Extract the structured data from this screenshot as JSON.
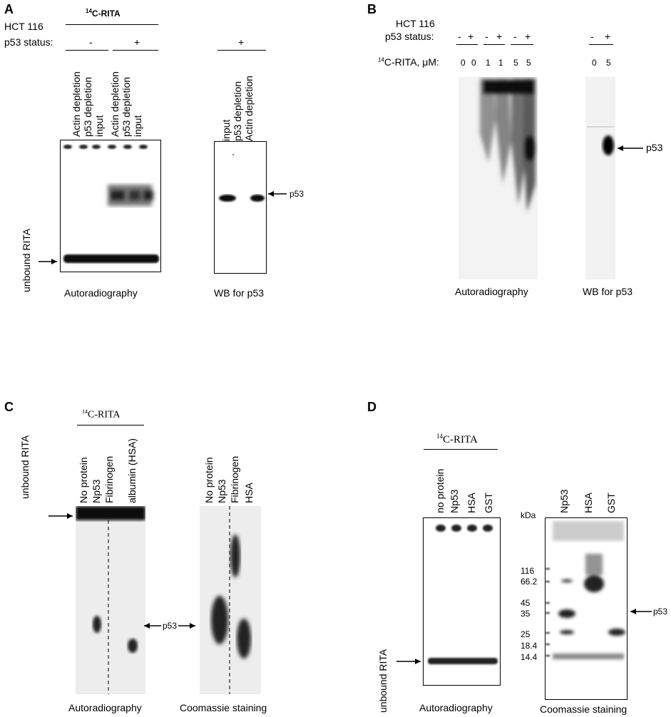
{
  "panels": {
    "A": {
      "letter": "A",
      "cell_line": "HCT 116",
      "status_label": "p53 status:",
      "rita_label": "14C-RITA",
      "rita_sup": "14",
      "rita_rest": "C-RITA",
      "status_minus": "-",
      "status_plus": "+",
      "status_plus_wb": "+",
      "lanes_autorad": [
        "Actin depletion",
        "p53 depletion",
        "input",
        "Actin depletion",
        "p53 depletion",
        "input"
      ],
      "lanes_wb": [
        "input",
        "p53 depletion",
        "Actin depletion"
      ],
      "unbound": "unbound RITA",
      "p53": "p53",
      "cap_autorad": "Autoradiography",
      "cap_wb": "WB for p53"
    },
    "B": {
      "letter": "B",
      "cell_line": "HCT 116",
      "status_label": "p53 status:",
      "status_signs": [
        "-",
        "+",
        "-",
        "+",
        "-",
        "+"
      ],
      "wb_signs": [
        "-",
        "+"
      ],
      "conc_label_sup": "14",
      "conc_label_rest": "C-RITA, μM:",
      "conc_values": [
        "0",
        "0",
        "1",
        "1",
        "5",
        "5"
      ],
      "wb_conc": [
        "0",
        "5"
      ],
      "p53": "p53",
      "cap_autorad": "Autoradiography",
      "cap_wb": "WB for p53"
    },
    "C": {
      "letter": "C",
      "rita_sup": "14",
      "rita_rest": "C-RITA",
      "lanes_autorad": [
        "No protein",
        "Np53",
        "Fibrinogen",
        "albumin (HSA)"
      ],
      "lanes_coom": [
        "No protein",
        "Np53",
        "Fibrinogen",
        "HSA"
      ],
      "unbound": "unbound RITA",
      "p53": "p53",
      "cap_autorad": "Autoradiography",
      "cap_coom": "Coomassie staining"
    },
    "D": {
      "letter": "D",
      "rita_sup": "14",
      "rita_rest": "C-RITA",
      "lanes_autorad": [
        "no protein",
        "Np53",
        "HSA",
        "GST"
      ],
      "lanes_coom": [
        "Np53",
        "HSA",
        "GST"
      ],
      "kda": "kDa",
      "markers": [
        "116",
        "66.2",
        "45",
        "35",
        "25",
        "18.4",
        "14.4"
      ],
      "unbound": "unbound RITA",
      "p53": "p53",
      "cap_autorad": "Autoradiography",
      "cap_coom": "Coomassie staining"
    }
  }
}
